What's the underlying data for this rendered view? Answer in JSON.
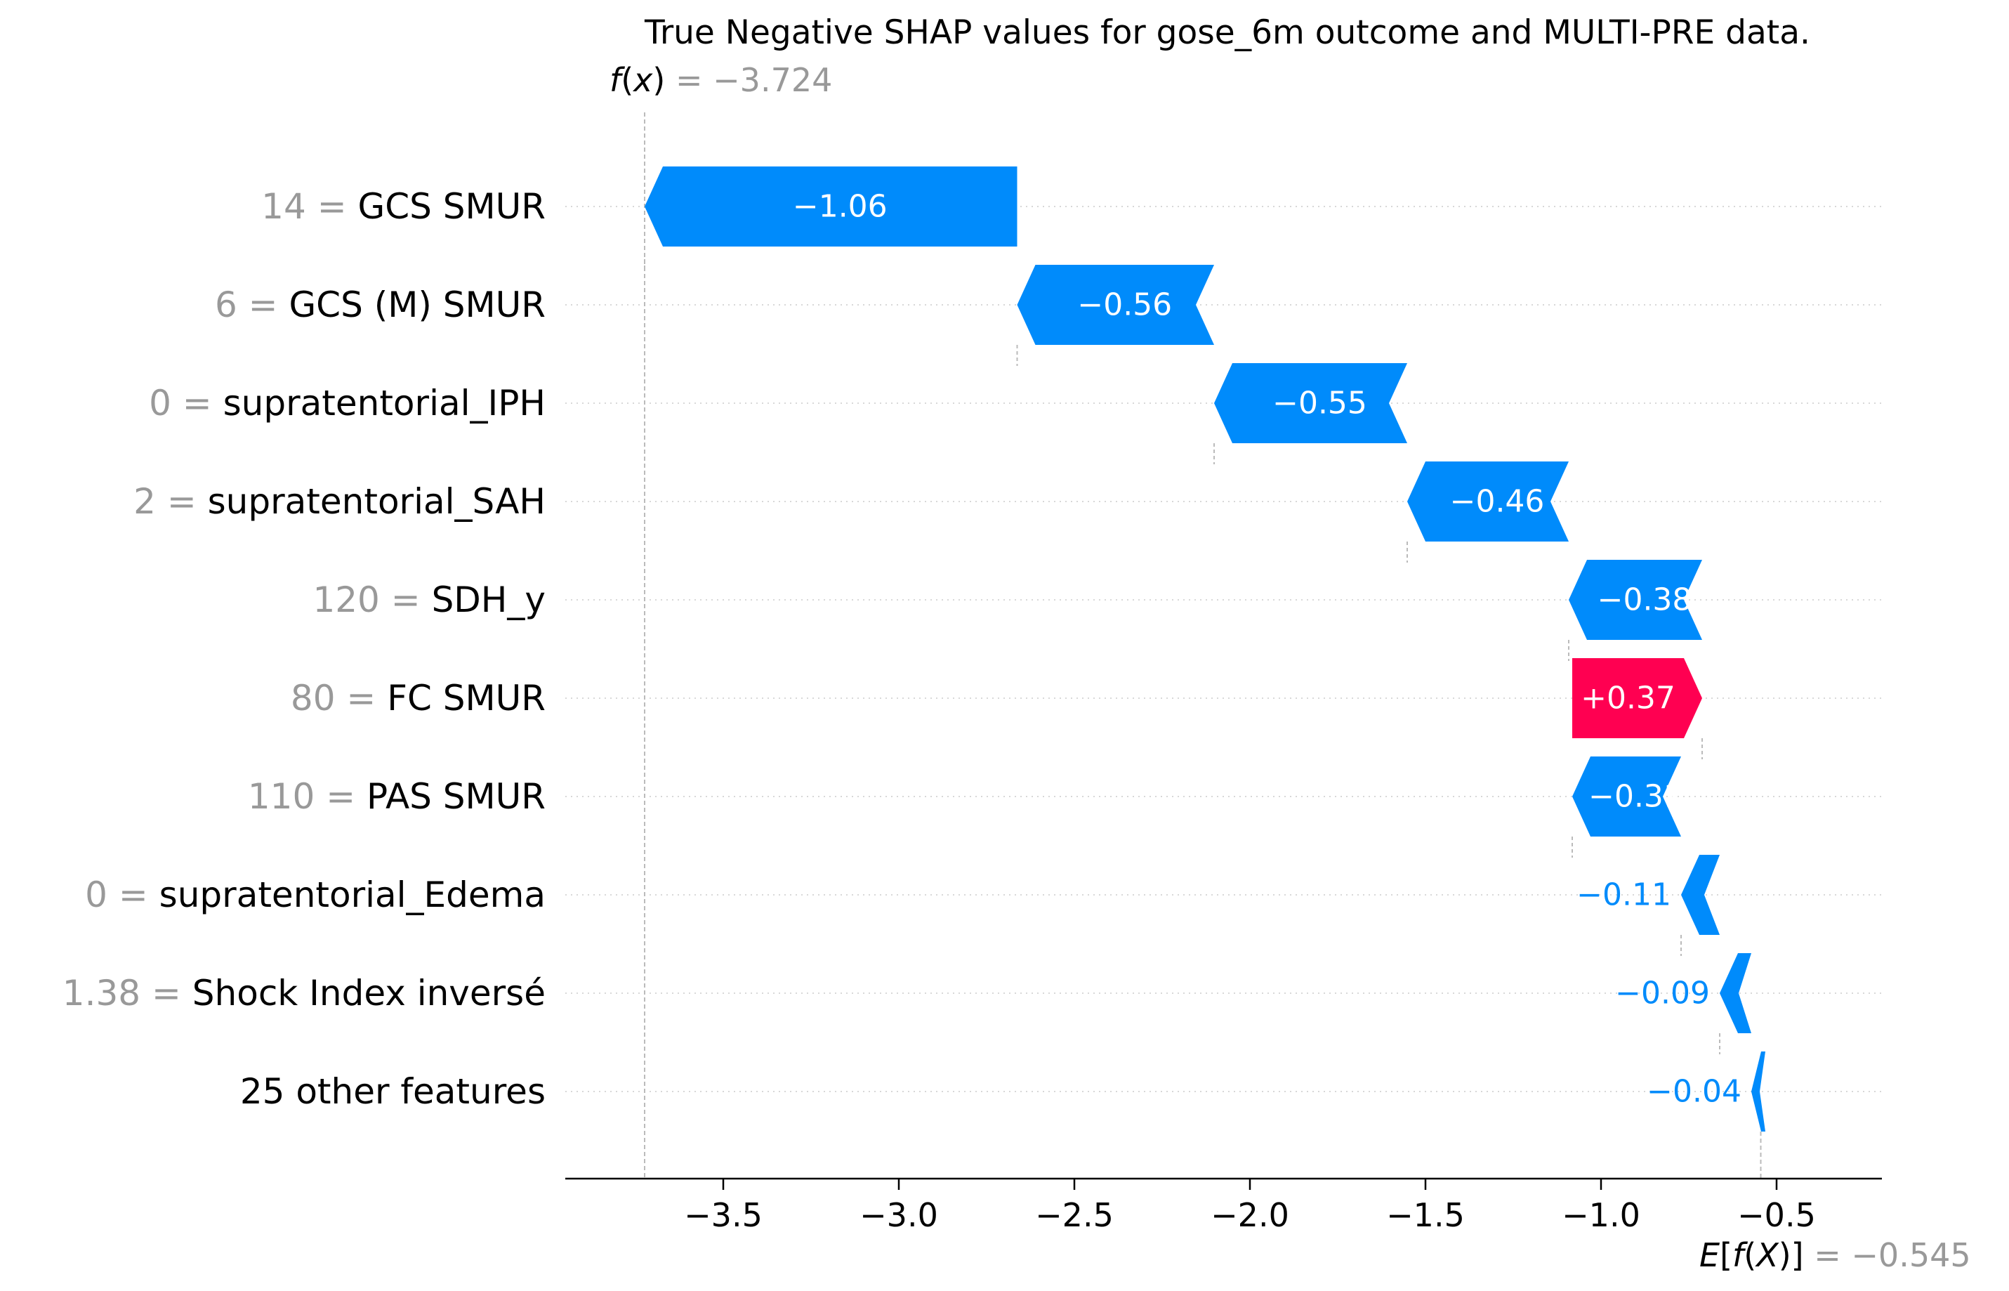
{
  "chart_data": {
    "type": "waterfall",
    "title": "True Negative SHAP values for gose_6m outcome and MULTI-PRE data.",
    "fx": {
      "label_prefix": "f",
      "label_arg": "x",
      "value_text": "= −3.724",
      "value": -3.724
    },
    "efx": {
      "label_prefix": "E",
      "label_inner_fn": "f",
      "label_arg": "X",
      "value_text": "= −0.545",
      "value": -0.545
    },
    "xlim": [
      -3.95,
      -0.2
    ],
    "xticks": [
      -3.5,
      -3.0,
      -2.5,
      -2.0,
      -1.5,
      -1.0,
      -0.5
    ],
    "xtick_labels": [
      "−3.5",
      "−3.0",
      "−2.5",
      "−2.0",
      "−1.5",
      "−1.0",
      "−0.5"
    ],
    "features": [
      {
        "value_text": "14 =",
        "name": "GCS SMUR ",
        "shap": -1.06,
        "label": "−1.06",
        "start": -2.663,
        "end": -3.724
      },
      {
        "value_text": "6 =",
        "name": "GCS (M) SMUR ",
        "shap": -0.56,
        "label": "−0.56",
        "start": -2.102,
        "end": -2.663
      },
      {
        "value_text": "0 =",
        "name": "supratentorial_IPH",
        "shap": -0.55,
        "label": "−0.55",
        "start": -1.552,
        "end": -2.102
      },
      {
        "value_text": "2 =",
        "name": "supratentorial_SAH",
        "shap": -0.46,
        "label": "−0.46",
        "start": -1.092,
        "end": -1.552
      },
      {
        "value_text": "120 =",
        "name": "SDH_y",
        "shap": -0.38,
        "label": "−0.38",
        "start": -0.712,
        "end": -1.092
      },
      {
        "value_text": "80 =",
        "name": "FC SMUR ",
        "shap": 0.37,
        "label": "+0.37",
        "start": -1.082,
        "end": -0.712
      },
      {
        "value_text": "110 =",
        "name": "PAS  SMUR ",
        "shap": -0.31,
        "label": "−0.31",
        "start": -0.772,
        "end": -1.082
      },
      {
        "value_text": "0 =",
        "name": "supratentorial_Edema",
        "shap": -0.11,
        "label": "−0.11",
        "start": -0.662,
        "end": -0.772
      },
      {
        "value_text": "1.38 =",
        "name": "Shock Index inversé",
        "shap": -0.09,
        "label": "−0.09",
        "start": -0.572,
        "end": -0.662
      },
      {
        "value_text": "",
        "name": "25 other features",
        "shap": -0.04,
        "label": "−0.04",
        "start": -0.532,
        "end": -0.572
      }
    ],
    "colors": {
      "negative": "#008bfb",
      "positive": "#ff0051",
      "muted": "#999999",
      "text": "#000000"
    }
  }
}
